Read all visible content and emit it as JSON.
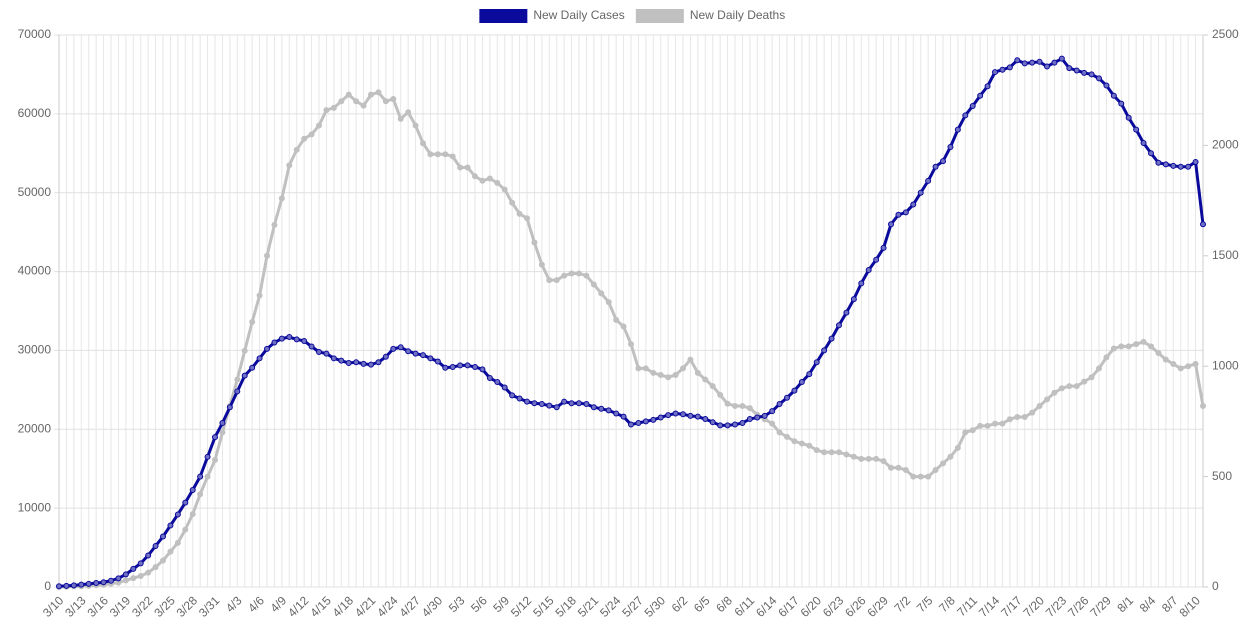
{
  "chart_data": {
    "type": "line",
    "categories": [
      "3/10",
      null,
      null,
      "3/13",
      null,
      null,
      "3/16",
      null,
      null,
      "3/19",
      null,
      null,
      "3/22",
      null,
      null,
      "3/25",
      null,
      null,
      "3/28",
      null,
      null,
      "3/31",
      null,
      null,
      "4/3",
      null,
      null,
      "4/6",
      null,
      null,
      "4/9",
      null,
      null,
      "4/12",
      null,
      null,
      "4/15",
      null,
      null,
      "4/18",
      null,
      null,
      "4/21",
      null,
      null,
      "4/24",
      null,
      null,
      "4/27",
      null,
      null,
      "4/30",
      null,
      null,
      "5/3",
      null,
      null,
      "5/6",
      null,
      null,
      "5/9",
      null,
      null,
      "5/12",
      null,
      null,
      "5/15",
      null,
      null,
      "5/18",
      null,
      null,
      "5/21",
      null,
      null,
      "5/24",
      null,
      null,
      "5/27",
      null,
      null,
      "5/30",
      null,
      null,
      "6/2",
      null,
      null,
      "6/5",
      null,
      null,
      "6/8",
      null,
      null,
      "6/11",
      null,
      null,
      "6/14",
      null,
      null,
      "6/17",
      null,
      null,
      "6/20",
      null,
      null,
      "6/23",
      null,
      null,
      "6/26",
      null,
      null,
      "6/29",
      null,
      null,
      "7/2",
      null,
      null,
      "7/5",
      null,
      null,
      "7/8",
      null,
      null,
      "7/11",
      null,
      null,
      "7/14",
      null,
      null,
      "7/17",
      null,
      null,
      "7/20",
      null,
      null,
      "7/23",
      null,
      null,
      "7/26",
      null,
      null,
      "7/29",
      null,
      null,
      "8/1",
      null,
      null,
      "8/4",
      null,
      null,
      "8/7",
      null,
      null,
      "8/10",
      null
    ],
    "series": [
      {
        "name": "New Daily Cases",
        "color": "#0a0a9c",
        "point_fill": "#6f6fc4",
        "values": [
          100,
          150,
          200,
          300,
          400,
          500,
          600,
          800,
          1100,
          1600,
          2300,
          3000,
          4000,
          5200,
          6400,
          7800,
          9200,
          10700,
          12300,
          14000,
          16500,
          19000,
          20800,
          22800,
          24800,
          26800,
          27800,
          29000,
          30200,
          31000,
          31500,
          31700,
          31400,
          31200,
          30500,
          29800,
          29600,
          29000,
          28700,
          28400,
          28500,
          28300,
          28200,
          28500,
          29200,
          30200,
          30400,
          29900,
          29600,
          29400,
          29000,
          28600,
          27800,
          27900,
          28100,
          28100,
          27900,
          27600,
          26500,
          26000,
          25300,
          24300,
          23900,
          23500,
          23300,
          23200,
          23000,
          22800,
          23500,
          23300,
          23300,
          23200,
          22800,
          22600,
          22400,
          22000,
          21600,
          20600,
          20800,
          21000,
          21200,
          21500,
          21800,
          22000,
          21900,
          21700,
          21600,
          21300,
          20900,
          20500,
          20500,
          20600,
          20800,
          21300,
          21500,
          21700,
          22300,
          23200,
          24000,
          24900,
          26000,
          27000,
          28500,
          30000,
          31500,
          33200,
          34800,
          36500,
          38500,
          40200,
          41500,
          43000,
          46000,
          47200,
          47500,
          48500,
          50000,
          51500,
          53300,
          54000,
          55800,
          58000,
          59800,
          61000,
          62300,
          63500,
          65300,
          65600,
          65900,
          66800,
          66400,
          66500,
          66600,
          66000,
          66500,
          67000,
          65800,
          65500,
          65200,
          65000,
          64500,
          63600,
          62300,
          61300,
          59500,
          58000,
          56300,
          55000,
          53800,
          53600,
          53400,
          53300,
          53300,
          53900,
          46000
        ]
      },
      {
        "name": "New Daily Deaths",
        "color": "#c0c0c0",
        "point_fill": "#c0c0c0",
        "axis": "y2",
        "values": [
          0,
          1,
          2,
          3,
          5,
          8,
          10,
          15,
          20,
          30,
          40,
          50,
          65,
          90,
          120,
          160,
          200,
          260,
          330,
          420,
          500,
          575,
          700,
          820,
          940,
          1070,
          1200,
          1320,
          1500,
          1640,
          1760,
          1910,
          1980,
          2030,
          2050,
          2090,
          2160,
          2170,
          2200,
          2230,
          2200,
          2180,
          2230,
          2240,
          2200,
          2210,
          2120,
          2150,
          2090,
          2010,
          1960,
          1960,
          1960,
          1950,
          1900,
          1900,
          1860,
          1840,
          1850,
          1830,
          1800,
          1740,
          1690,
          1670,
          1560,
          1460,
          1390,
          1390,
          1410,
          1420,
          1420,
          1410,
          1370,
          1330,
          1290,
          1210,
          1180,
          1100,
          990,
          990,
          970,
          960,
          950,
          960,
          990,
          1030,
          970,
          940,
          910,
          870,
          830,
          820,
          820,
          810,
          780,
          760,
          740,
          700,
          680,
          660,
          650,
          640,
          620,
          610,
          610,
          610,
          600,
          590,
          580,
          580,
          580,
          570,
          540,
          540,
          530,
          500,
          500,
          500,
          530,
          560,
          590,
          630,
          700,
          710,
          730,
          730,
          740,
          740,
          760,
          770,
          770,
          790,
          820,
          850,
          880,
          900,
          910,
          910,
          930,
          950,
          990,
          1040,
          1080,
          1090,
          1090,
          1100,
          1110,
          1090,
          1060,
          1030,
          1010,
          990,
          1000,
          1010,
          820
        ]
      }
    ],
    "ylim": [
      0,
      70000
    ],
    "yticks": [
      0,
      10000,
      20000,
      30000,
      40000,
      50000,
      60000,
      70000
    ],
    "y2lim": [
      0,
      2500
    ],
    "y2ticks": [
      0,
      500,
      1000,
      1500,
      2000,
      2500
    ],
    "grid": true,
    "legend": "top"
  }
}
